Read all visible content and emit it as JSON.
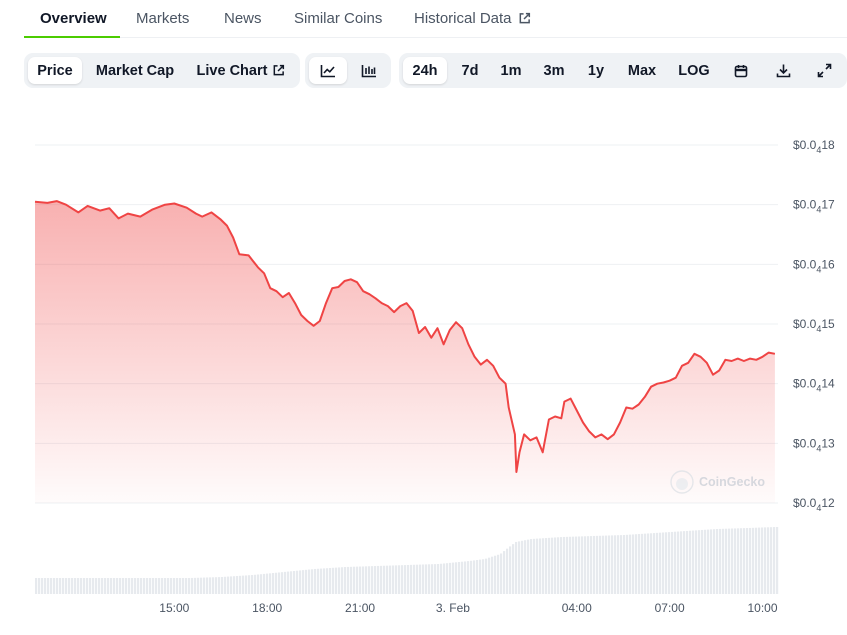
{
  "nav": {
    "tabs": [
      {
        "label": "Overview",
        "active": true
      },
      {
        "label": "Markets"
      },
      {
        "label": "News"
      },
      {
        "label": "Similar Coins"
      },
      {
        "label": "Historical Data",
        "icon": "external-link-icon"
      }
    ],
    "accent_color": "#4bcc00"
  },
  "toolbar": {
    "views": [
      {
        "label": "Price",
        "active": true
      },
      {
        "label": "Market Cap"
      },
      {
        "label": "Live Chart",
        "icon": "external-link-icon"
      }
    ],
    "chart_types": [
      {
        "icon": "line-chart-icon",
        "active": true
      },
      {
        "icon": "candlestick-icon"
      }
    ],
    "ranges": [
      {
        "label": "24h",
        "active": true
      },
      {
        "label": "7d"
      },
      {
        "label": "1m"
      },
      {
        "label": "3m"
      },
      {
        "label": "1y"
      },
      {
        "label": "Max"
      },
      {
        "label": "LOG"
      }
    ],
    "actions": [
      {
        "icon": "calendar-icon"
      },
      {
        "icon": "download-icon"
      },
      {
        "icon": "fullscreen-icon"
      }
    ]
  },
  "watermark": "CoinGecko",
  "chart_data": {
    "type": "area",
    "line_color": "#ef4444",
    "grid": true,
    "y_ticks": [
      {
        "prefix": "$0.0",
        "sub": "4",
        "digits": "18",
        "value": 18
      },
      {
        "prefix": "$0.0",
        "sub": "4",
        "digits": "17",
        "value": 17
      },
      {
        "prefix": "$0.0",
        "sub": "4",
        "digits": "16",
        "value": 16
      },
      {
        "prefix": "$0.0",
        "sub": "4",
        "digits": "15",
        "value": 15
      },
      {
        "prefix": "$0.0",
        "sub": "4",
        "digits": "14",
        "value": 14
      },
      {
        "prefix": "$0.0",
        "sub": "4",
        "digits": "13",
        "value": 13
      },
      {
        "prefix": "$0.0",
        "sub": "4",
        "digits": "12",
        "value": 12
      }
    ],
    "ylim": [
      12,
      18
    ],
    "x_ticks": [
      {
        "label": "15:00",
        "hour": 15
      },
      {
        "label": "18:00",
        "hour": 18
      },
      {
        "label": "21:00",
        "hour": 21
      },
      {
        "label": "3. Feb",
        "hour": 24
      },
      {
        "label": "04:00",
        "hour": 28
      },
      {
        "label": "07:00",
        "hour": 31
      },
      {
        "label": "10:00",
        "hour": 34
      }
    ],
    "xlim": [
      10.5,
      34.5
    ],
    "price_points": [
      [
        10.5,
        17.05
      ],
      [
        10.9,
        17.03
      ],
      [
        11.2,
        17.06
      ],
      [
        11.5,
        17.0
      ],
      [
        11.9,
        16.87
      ],
      [
        12.2,
        16.98
      ],
      [
        12.6,
        16.9
      ],
      [
        12.9,
        16.94
      ],
      [
        13.2,
        16.77
      ],
      [
        13.5,
        16.85
      ],
      [
        13.9,
        16.8
      ],
      [
        14.3,
        16.92
      ],
      [
        14.7,
        17.0
      ],
      [
        15.0,
        17.02
      ],
      [
        15.4,
        16.95
      ],
      [
        15.7,
        16.85
      ],
      [
        15.9,
        16.8
      ],
      [
        16.2,
        16.87
      ],
      [
        16.5,
        16.75
      ],
      [
        16.7,
        16.65
      ],
      [
        16.9,
        16.45
      ],
      [
        17.1,
        16.17
      ],
      [
        17.4,
        16.15
      ],
      [
        17.7,
        15.95
      ],
      [
        17.9,
        15.85
      ],
      [
        18.1,
        15.6
      ],
      [
        18.3,
        15.55
      ],
      [
        18.5,
        15.45
      ],
      [
        18.7,
        15.52
      ],
      [
        18.9,
        15.35
      ],
      [
        19.1,
        15.15
      ],
      [
        19.3,
        15.05
      ],
      [
        19.5,
        14.97
      ],
      [
        19.7,
        15.05
      ],
      [
        19.9,
        15.35
      ],
      [
        20.1,
        15.6
      ],
      [
        20.3,
        15.62
      ],
      [
        20.5,
        15.72
      ],
      [
        20.7,
        15.75
      ],
      [
        20.9,
        15.7
      ],
      [
        21.1,
        15.55
      ],
      [
        21.3,
        15.5
      ],
      [
        21.5,
        15.43
      ],
      [
        21.7,
        15.35
      ],
      [
        21.9,
        15.3
      ],
      [
        22.1,
        15.2
      ],
      [
        22.3,
        15.3
      ],
      [
        22.5,
        15.35
      ],
      [
        22.7,
        15.22
      ],
      [
        22.9,
        14.85
      ],
      [
        23.1,
        14.95
      ],
      [
        23.3,
        14.77
      ],
      [
        23.5,
        14.93
      ],
      [
        23.7,
        14.66
      ],
      [
        23.9,
        14.9
      ],
      [
        24.1,
        15.03
      ],
      [
        24.3,
        14.93
      ],
      [
        24.5,
        14.66
      ],
      [
        24.7,
        14.45
      ],
      [
        24.9,
        14.32
      ],
      [
        25.1,
        14.4
      ],
      [
        25.3,
        14.3
      ],
      [
        25.5,
        14.1
      ],
      [
        25.7,
        14.0
      ],
      [
        25.8,
        13.6
      ],
      [
        26.0,
        13.15
      ],
      [
        26.05,
        12.52
      ],
      [
        26.15,
        12.85
      ],
      [
        26.3,
        13.15
      ],
      [
        26.5,
        13.05
      ],
      [
        26.7,
        13.1
      ],
      [
        26.9,
        12.85
      ],
      [
        27.1,
        13.4
      ],
      [
        27.3,
        13.45
      ],
      [
        27.5,
        13.42
      ],
      [
        27.6,
        13.7
      ],
      [
        27.8,
        13.75
      ],
      [
        28.0,
        13.55
      ],
      [
        28.2,
        13.35
      ],
      [
        28.4,
        13.2
      ],
      [
        28.6,
        13.1
      ],
      [
        28.8,
        13.15
      ],
      [
        29.0,
        13.07
      ],
      [
        29.2,
        13.15
      ],
      [
        29.4,
        13.35
      ],
      [
        29.6,
        13.6
      ],
      [
        29.8,
        13.58
      ],
      [
        30.0,
        13.65
      ],
      [
        30.2,
        13.78
      ],
      [
        30.4,
        13.95
      ],
      [
        30.6,
        14.0
      ],
      [
        30.8,
        14.02
      ],
      [
        31.0,
        14.05
      ],
      [
        31.2,
        14.1
      ],
      [
        31.4,
        14.3
      ],
      [
        31.6,
        14.35
      ],
      [
        31.8,
        14.5
      ],
      [
        32.0,
        14.45
      ],
      [
        32.2,
        14.35
      ],
      [
        32.4,
        14.15
      ],
      [
        32.6,
        14.22
      ],
      [
        32.8,
        14.4
      ],
      [
        33.0,
        14.38
      ],
      [
        33.2,
        14.42
      ],
      [
        33.4,
        14.38
      ],
      [
        33.6,
        14.42
      ],
      [
        33.8,
        14.4
      ],
      [
        34.0,
        14.45
      ],
      [
        34.2,
        14.52
      ],
      [
        34.4,
        14.5
      ]
    ],
    "volume_points": [
      [
        10.5,
        0.16
      ],
      [
        11.5,
        0.16
      ],
      [
        12.5,
        0.16
      ],
      [
        13.5,
        0.16
      ],
      [
        14.5,
        0.16
      ],
      [
        15.5,
        0.16
      ],
      [
        16.5,
        0.17
      ],
      [
        17.5,
        0.19
      ],
      [
        18.5,
        0.22
      ],
      [
        19.5,
        0.25
      ],
      [
        20.5,
        0.27
      ],
      [
        21.5,
        0.28
      ],
      [
        22.5,
        0.29
      ],
      [
        23.5,
        0.3
      ],
      [
        24.5,
        0.33
      ],
      [
        25.0,
        0.35
      ],
      [
        25.5,
        0.4
      ],
      [
        25.7,
        0.45
      ],
      [
        26.0,
        0.52
      ],
      [
        26.5,
        0.55
      ],
      [
        27.5,
        0.57
      ],
      [
        28.5,
        0.58
      ],
      [
        29.5,
        0.59
      ],
      [
        30.5,
        0.61
      ],
      [
        31.5,
        0.63
      ],
      [
        32.5,
        0.65
      ],
      [
        33.5,
        0.66
      ],
      [
        34.4,
        0.67
      ]
    ]
  }
}
